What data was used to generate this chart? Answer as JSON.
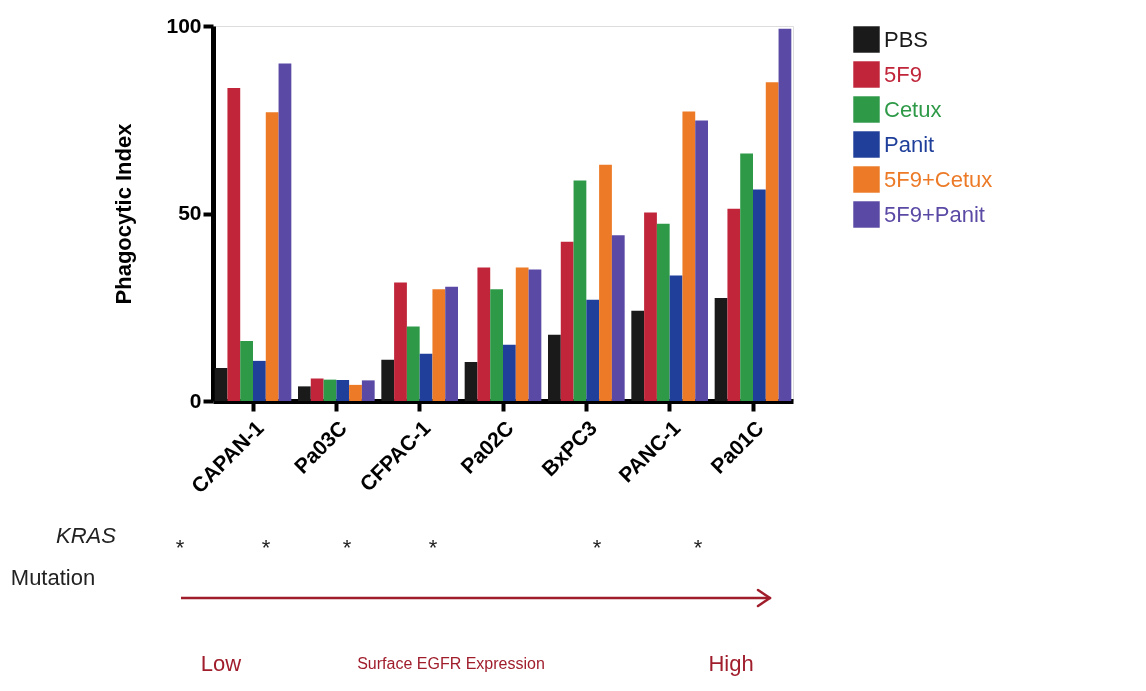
{
  "chart_data": {
    "type": "bar",
    "ylabel": "Phagocytic Index",
    "categories": [
      "CAPAN-1",
      "Pa03C",
      "CFPAC-1",
      "Pa02C",
      "BxPC3",
      "PANC-1",
      "Pa01C"
    ],
    "series": [
      {
        "name": "PBS",
        "color": "#1a1a1a",
        "values": [
          8.8,
          3.9,
          11,
          10.4,
          17.7,
          24.1,
          27.5
        ]
      },
      {
        "name": "5F9",
        "color": "#c0253a",
        "values": [
          83.5,
          6,
          31.6,
          35.6,
          42.5,
          50.3,
          51.3
        ]
      },
      {
        "name": "Cetux",
        "color": "#2e9a48",
        "values": [
          16,
          5.7,
          19.9,
          29.8,
          58.8,
          47.3,
          66
        ]
      },
      {
        "name": "Panit",
        "color": "#1f3f9a",
        "values": [
          10.7,
          5.6,
          12.6,
          15,
          27,
          33.5,
          56.4
        ]
      },
      {
        "name": "5F9+Cetux",
        "color": "#ec7a26",
        "values": [
          77,
          4.3,
          29.8,
          35.6,
          63,
          77.2,
          85
        ]
      },
      {
        "name": "5F9+Panit",
        "color": "#5b4aa5",
        "values": [
          90,
          5.5,
          30.5,
          35.1,
          44.2,
          74.8,
          99.3
        ]
      }
    ],
    "ylim": [
      0,
      100
    ],
    "yticks": [
      0,
      50,
      100
    ],
    "grid": false,
    "legend": "top right",
    "annotations": [
      "KRAS",
      "Mutation",
      "Low",
      "Surface EGFR Expression",
      "High",
      "*",
      "*",
      "*",
      "*",
      "*",
      "*"
    ]
  }
}
